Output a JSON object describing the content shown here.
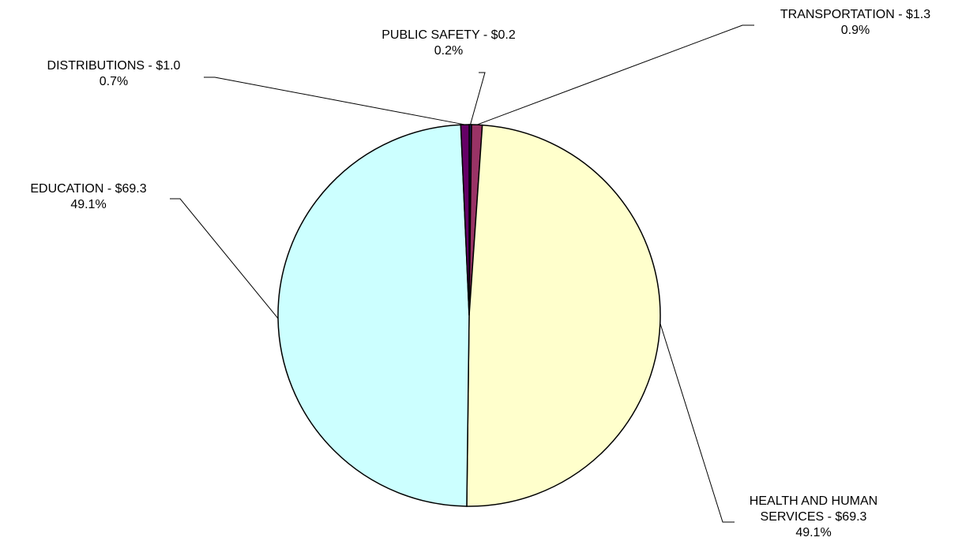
{
  "chart_data": {
    "type": "pie",
    "categories": [
      "PUBLIC SAFETY - $0.2",
      "TRANSPORTATION - $1.3",
      "HEALTH AND HUMAN SERVICES - $69.3",
      "EDUCATION - $69.3",
      "DISTRIBUTIONS - $1.0"
    ],
    "values": [
      0.2,
      0.9,
      49.1,
      49.1,
      0.7
    ],
    "value_labels": [
      "0.2%",
      "0.9%",
      "49.1%",
      "49.1%",
      "0.7%"
    ],
    "colors": [
      "#1f1f5c",
      "#993366",
      "#ffffcc",
      "#ccffff",
      "#660066"
    ]
  }
}
